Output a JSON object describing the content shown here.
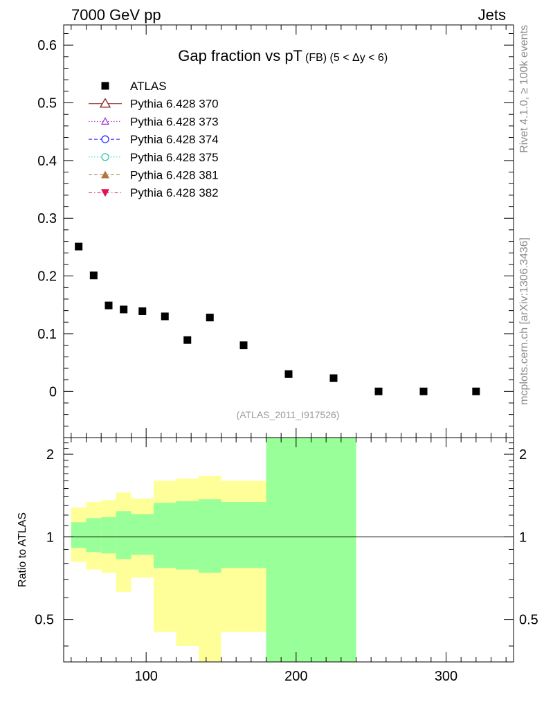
{
  "header": {
    "left": "7000 GeV pp",
    "right": "Jets"
  },
  "side_labels": {
    "rivet": "Rivet 4.1.0, ≥ 100k events",
    "mcplots": "mcplots.cern.ch [arXiv:1306.3436]"
  },
  "chart_data": {
    "type": "scatter",
    "title_main": "Gap fraction vs pT",
    "title_sub": "(FB) (5 < Δy < 6)",
    "watermark": "(ATLAS_2011_I917526)",
    "x": [
      55,
      65,
      75,
      85,
      97.5,
      112.5,
      127.5,
      142.5,
      165,
      195,
      225,
      255,
      285,
      320
    ],
    "y": [
      0.251,
      0.201,
      0.149,
      0.142,
      0.139,
      0.13,
      0.089,
      0.128,
      0.08,
      0.03,
      0.023,
      0.0,
      0.0,
      0.0
    ],
    "xlim": [
      45,
      345
    ],
    "ylim": [
      -0.08,
      0.635
    ],
    "yticks": [
      0,
      0.1,
      0.2,
      0.3,
      0.4,
      0.5,
      0.6
    ],
    "ytick_labels": [
      "0",
      "0.1",
      "0.2",
      "0.3",
      "0.4",
      "0.5",
      "0.6"
    ],
    "legend": [
      {
        "name": "ATLAS",
        "marker": "square",
        "color": "#000000",
        "line": "none"
      },
      {
        "name": "Pythia 6.428 370",
        "marker": "triangle-up-open",
        "color": "#8b1a1a",
        "line": "solid"
      },
      {
        "name": "Pythia 6.428 373",
        "marker": "triangle-up-open-small",
        "color": "#9932cc",
        "line": "dotted"
      },
      {
        "name": "Pythia 6.428 374",
        "marker": "circle-open",
        "color": "#1a1aff",
        "line": "dashed"
      },
      {
        "name": "Pythia 6.428 375",
        "marker": "circle-open",
        "color": "#20c0b0",
        "line": "dotted"
      },
      {
        "name": "Pythia 6.428 381",
        "marker": "triangle-up-filled",
        "color": "#b07840",
        "line": "dashed"
      },
      {
        "name": "Pythia 6.428 382",
        "marker": "triangle-down-filled",
        "color": "#e0105a",
        "line": "dashdot"
      }
    ],
    "ratio": {
      "ylabel": "Ratio to ATLAS",
      "ylim": [
        0.35,
        2.3
      ],
      "yticks": [
        0.5,
        1,
        2
      ],
      "ytick_labels": [
        "0.5",
        "1",
        "2"
      ],
      "xticks": [
        100,
        200,
        300
      ],
      "xtick_labels": [
        "100",
        "200",
        "300"
      ],
      "bins": [
        {
          "x0": 50,
          "x1": 60,
          "y_lo": 0.81,
          "y_hi": 1.28,
          "g_lo": 0.91,
          "g_hi": 1.13
        },
        {
          "x0": 60,
          "x1": 70,
          "y_lo": 0.76,
          "y_hi": 1.34,
          "g_lo": 0.88,
          "g_hi": 1.17
        },
        {
          "x0": 70,
          "x1": 80,
          "y_lo": 0.74,
          "y_hi": 1.36,
          "g_lo": 0.87,
          "g_hi": 1.18
        },
        {
          "x0": 80,
          "x1": 90,
          "y_lo": 0.63,
          "y_hi": 1.45,
          "g_lo": 0.83,
          "g_hi": 1.24
        },
        {
          "x0": 90,
          "x1": 105,
          "y_lo": 0.71,
          "y_hi": 1.38,
          "g_lo": 0.86,
          "g_hi": 1.21
        },
        {
          "x0": 105,
          "x1": 120,
          "y_lo": 0.45,
          "y_hi": 1.6,
          "g_lo": 0.77,
          "g_hi": 1.33
        },
        {
          "x0": 120,
          "x1": 135,
          "y_lo": 0.4,
          "y_hi": 1.63,
          "g_lo": 0.76,
          "g_hi": 1.35
        },
        {
          "x0": 135,
          "x1": 150,
          "y_lo": 0.35,
          "y_hi": 1.67,
          "g_lo": 0.74,
          "g_hi": 1.37
        },
        {
          "x0": 150,
          "x1": 180,
          "y_lo": 0.45,
          "y_hi": 1.6,
          "g_lo": 0.77,
          "g_hi": 1.34
        },
        {
          "x0": 180,
          "x1": 210,
          "y_lo": 0.35,
          "y_hi": 2.3,
          "g_lo": 0.35,
          "g_hi": 2.3
        },
        {
          "x0": 210,
          "x1": 240,
          "y_lo": 0.35,
          "y_hi": 2.3,
          "g_lo": 0.35,
          "g_hi": 2.3
        }
      ]
    },
    "colors": {
      "yellow_band": "#ffff99",
      "green_band": "#99ff99",
      "data": "#000000",
      "watermark": "#999999"
    }
  }
}
